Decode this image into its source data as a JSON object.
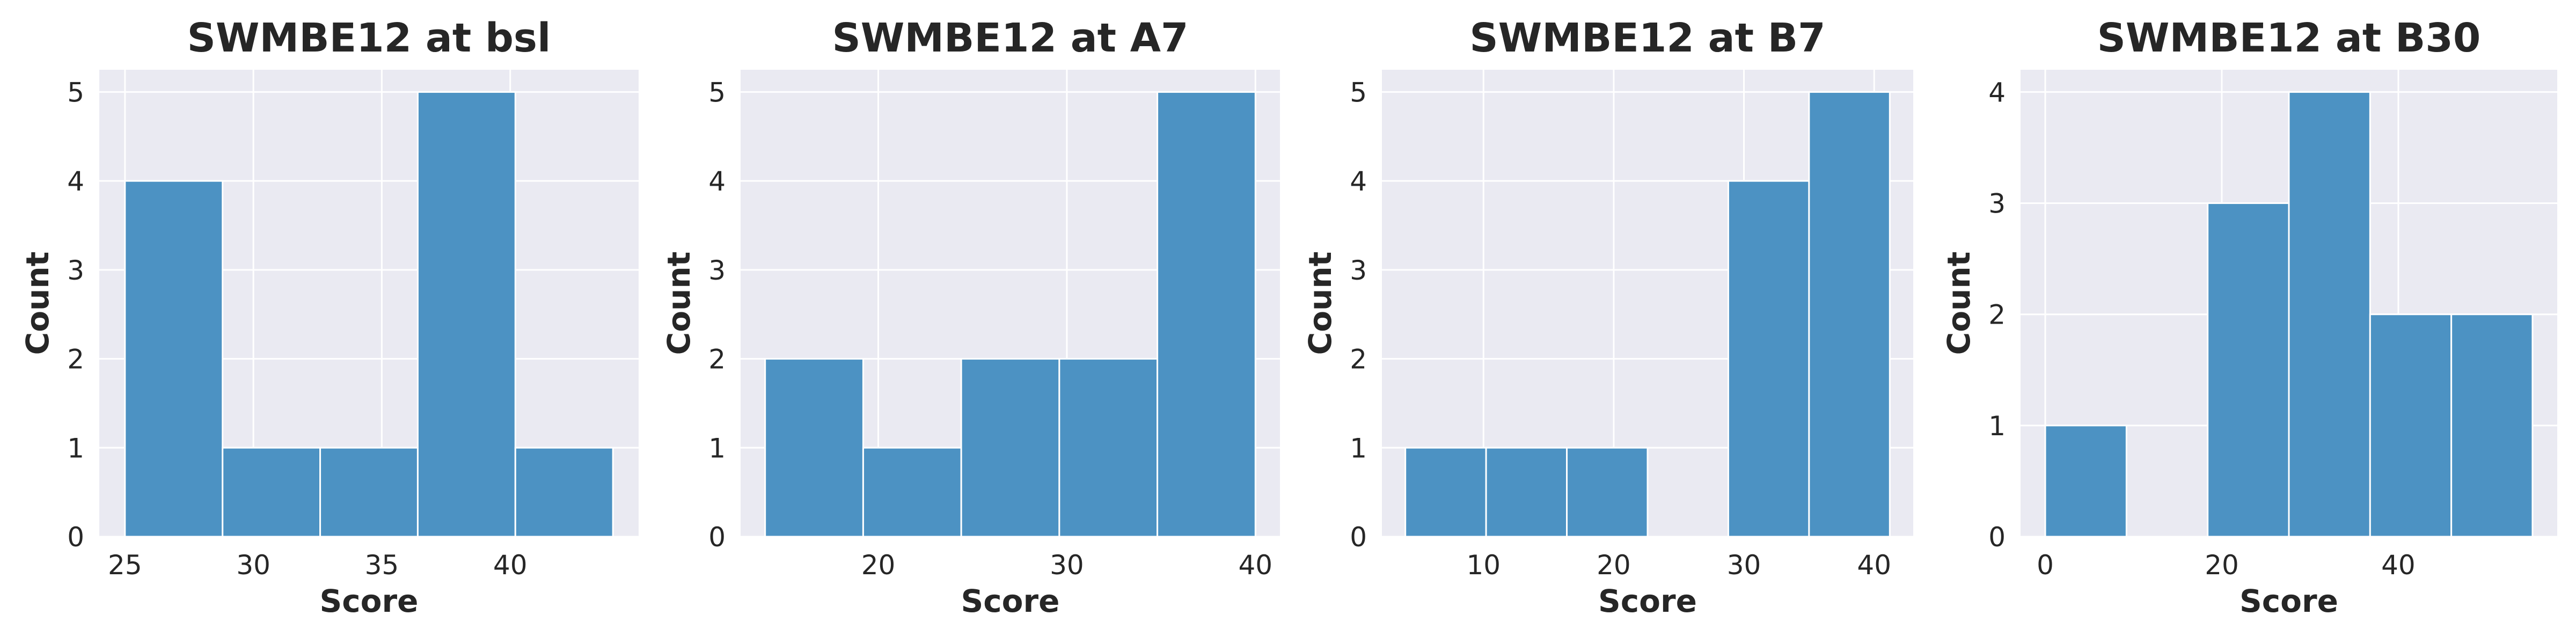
{
  "figure": {
    "xlabel": "Score",
    "ylabel": "Count",
    "bar_color": "#4c92c3",
    "bar_edge_color": "#ffffff",
    "panel_bg": "#eaeaf2",
    "grid_color": "#ffffff",
    "text_color": "#262626"
  },
  "chart_data": [
    {
      "type": "bar",
      "title": "SWMBE12 at bsl",
      "xlabel": "Score",
      "ylabel": "Count",
      "bins": [
        [
          25.0,
          28.8
        ],
        [
          28.8,
          32.6
        ],
        [
          32.6,
          36.4
        ],
        [
          36.4,
          40.2
        ],
        [
          40.2,
          44.0
        ]
      ],
      "values": [
        4,
        1,
        1,
        5,
        1
      ],
      "xlim": [
        24.0,
        45.0
      ],
      "ylim": [
        0,
        5.25
      ],
      "xticks": [
        25,
        30,
        35,
        40
      ],
      "yticks": [
        0,
        1,
        2,
        3,
        4,
        5
      ],
      "grid": true
    },
    {
      "type": "bar",
      "title": "SWMBE12 at A7",
      "xlabel": "Score",
      "ylabel": "Count",
      "bins": [
        [
          14.0,
          19.2
        ],
        [
          19.2,
          24.4
        ],
        [
          24.4,
          29.6
        ],
        [
          29.6,
          34.8
        ],
        [
          34.8,
          40.0
        ]
      ],
      "values": [
        2,
        1,
        2,
        2,
        5
      ],
      "xlim": [
        12.7,
        41.3
      ],
      "ylim": [
        0,
        5.25
      ],
      "xticks": [
        20,
        30,
        40
      ],
      "yticks": [
        0,
        1,
        2,
        3,
        4,
        5
      ],
      "grid": true
    },
    {
      "type": "bar",
      "title": "SWMBE12 at B7",
      "xlabel": "Score",
      "ylabel": "Count",
      "bins": [
        [
          4.0,
          10.2
        ],
        [
          10.2,
          16.4
        ],
        [
          16.4,
          22.6
        ],
        [
          22.6,
          28.8
        ],
        [
          28.8,
          35.0
        ],
        [
          35.0,
          41.2
        ]
      ],
      "values": [
        1,
        1,
        1,
        0,
        4,
        5
      ],
      "xlim": [
        2.2,
        43.0
      ],
      "ylim": [
        0,
        5.25
      ],
      "xticks": [
        10,
        20,
        30,
        40
      ],
      "yticks": [
        0,
        1,
        2,
        3,
        4,
        5
      ],
      "grid": true
    },
    {
      "type": "bar",
      "title": "SWMBE12 at B30",
      "xlabel": "Score",
      "ylabel": "Count",
      "bins": [
        [
          0.0,
          9.2
        ],
        [
          9.2,
          18.4
        ],
        [
          18.4,
          27.6
        ],
        [
          27.6,
          36.8
        ],
        [
          36.8,
          46.0
        ],
        [
          46.0,
          55.2
        ]
      ],
      "values": [
        1,
        0,
        3,
        4,
        2,
        2
      ],
      "xlim": [
        -2.8,
        58.0
      ],
      "ylim": [
        0,
        4.2
      ],
      "xticks": [
        0,
        20,
        40
      ],
      "yticks": [
        0,
        1,
        2,
        3,
        4
      ],
      "grid": true
    }
  ]
}
